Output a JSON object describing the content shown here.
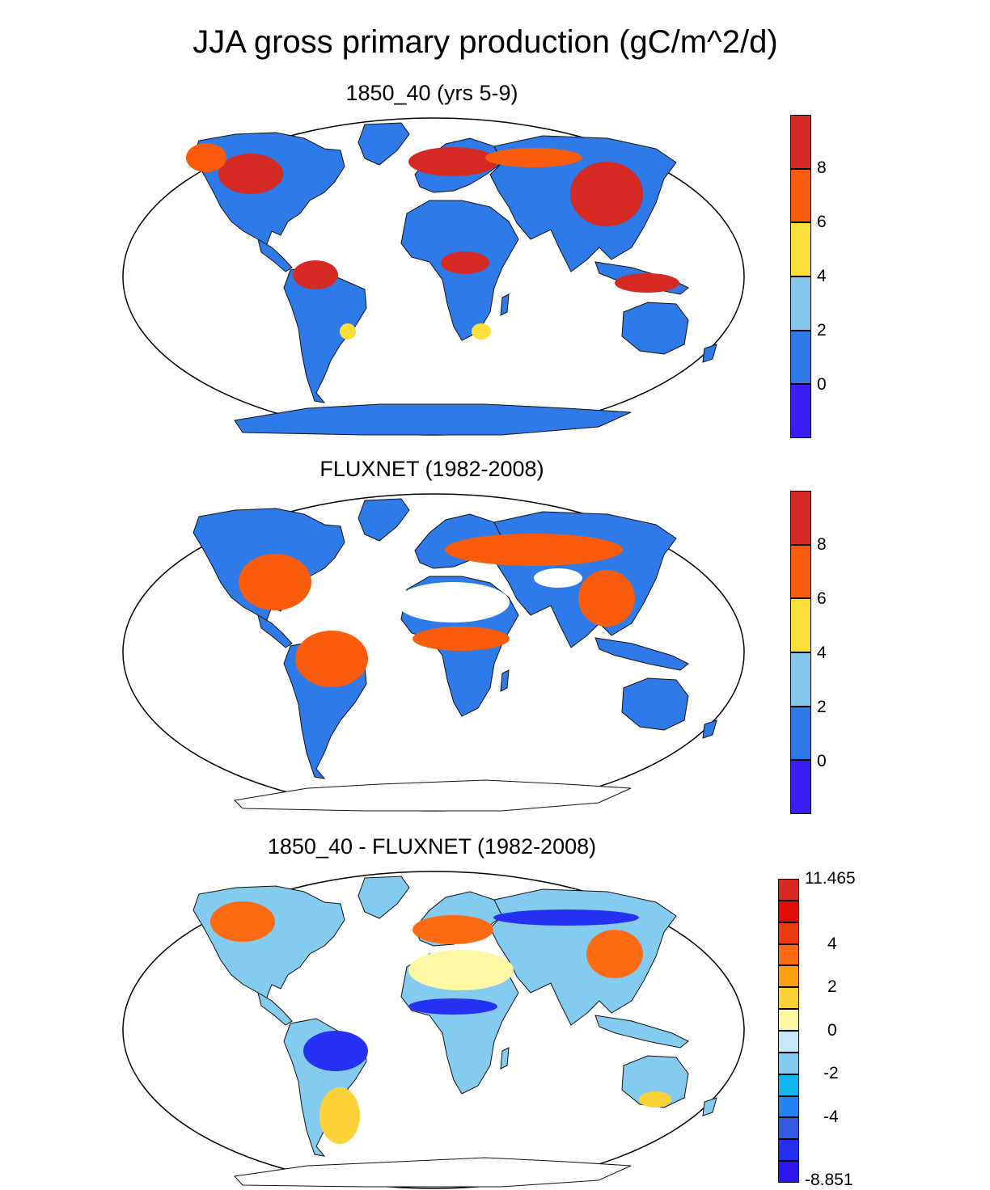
{
  "title": "JJA gross primary production (gC/m^2/d)",
  "panels": [
    {
      "id": "model",
      "title": "1850_40 (yrs 5-9)",
      "colorbar": {
        "colors": [
          "#3a1cf4",
          "#2e7ae8",
          "#84c8ef",
          "#fbe03a",
          "#fa5c0c",
          "#d52a24"
        ],
        "labels": [
          "0",
          "2",
          "4",
          "6",
          "8"
        ]
      }
    },
    {
      "id": "obs",
      "title": "FLUXNET (1982-2008)",
      "colorbar": {
        "colors": [
          "#3a1cf4",
          "#2e7ae8",
          "#84c8ef",
          "#fbe03a",
          "#fa5c0c",
          "#d52a24"
        ],
        "labels": [
          "0",
          "2",
          "4",
          "6",
          "8"
        ]
      }
    },
    {
      "id": "diff",
      "title": "1850_40 - FLUXNET (1982-2008)",
      "colorbar": {
        "colors": [
          "#2b16f0",
          "#2630f2",
          "#3359e0",
          "#2383f1",
          "#10b6f2",
          "#84cbf0",
          "#c8e6f4",
          "#fff7a4",
          "#fcd238",
          "#fb9e12",
          "#fd6a12",
          "#ee3a10",
          "#e20c0c",
          "#d52a24"
        ],
        "labels": [
          "11.465",
          "4",
          "2",
          "0",
          "-2",
          "-4",
          "-8.851"
        ]
      }
    }
  ]
}
